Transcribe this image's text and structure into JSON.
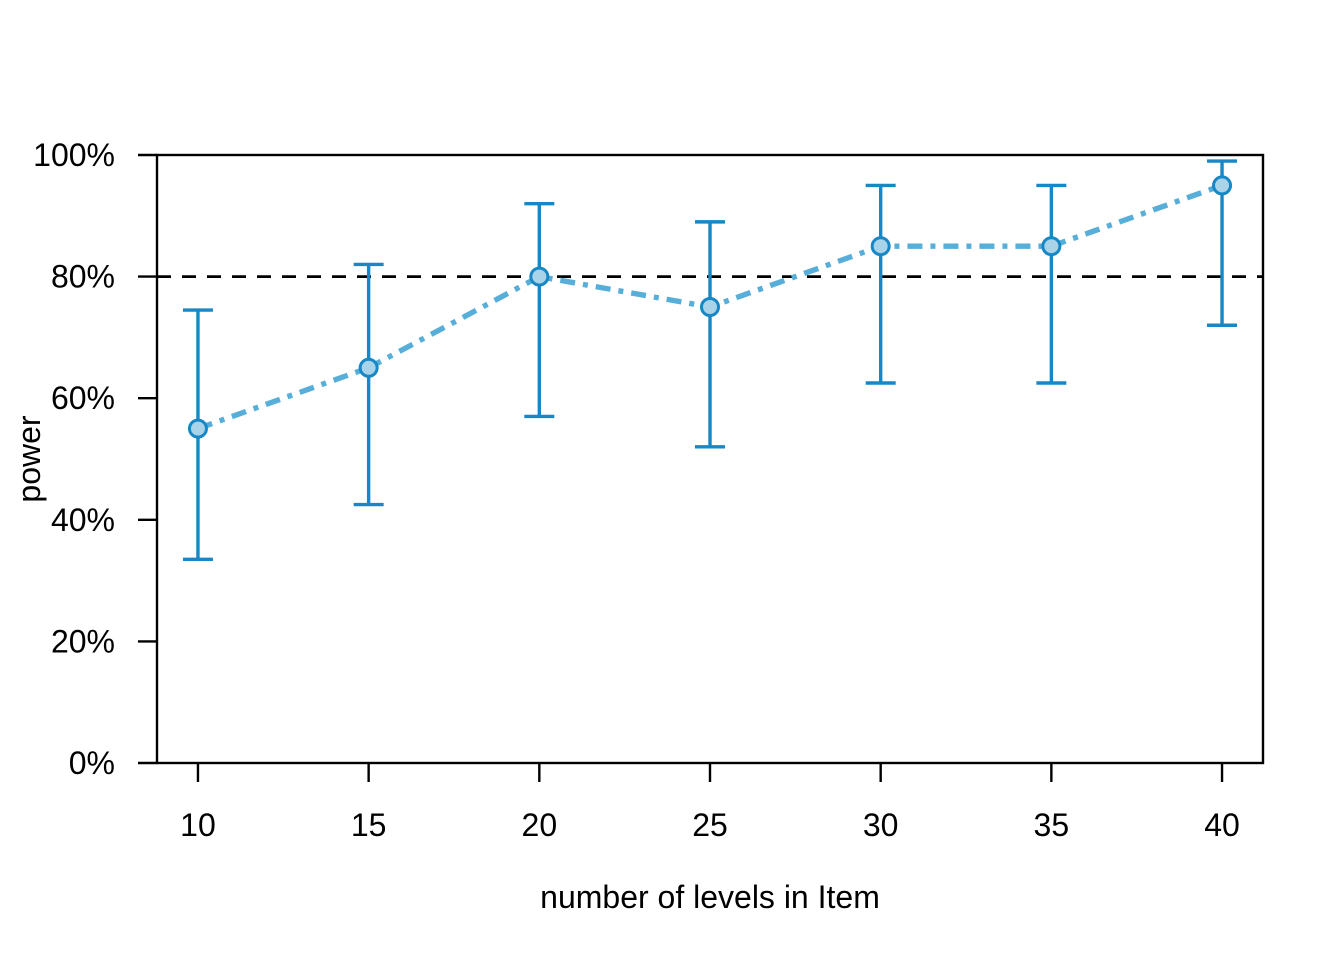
{
  "chart_data": {
    "type": "line",
    "title": "",
    "xlabel": "number of levels in Item",
    "ylabel": "power",
    "x": [
      10,
      15,
      20,
      25,
      30,
      35,
      40
    ],
    "series": [
      {
        "name": "power",
        "values": [
          55,
          65,
          80,
          75,
          85,
          85,
          95
        ]
      }
    ],
    "error_bars": {
      "lower": [
        33.5,
        42.5,
        57,
        52,
        62.5,
        62.5,
        72
      ],
      "upper": [
        74.5,
        82,
        92,
        89,
        95,
        95,
        99
      ]
    },
    "reference_line": {
      "y": 80,
      "style": "dashed",
      "color": "#000000"
    },
    "x_tick_values": [
      10,
      15,
      20,
      25,
      30,
      35,
      40
    ],
    "x_tick_labels": [
      "10",
      "15",
      "20",
      "25",
      "30",
      "35",
      "40"
    ],
    "y_tick_values": [
      0,
      20,
      40,
      60,
      80,
      100
    ],
    "y_tick_labels": [
      "0%",
      "20%",
      "40%",
      "60%",
      "80%",
      "100%"
    ],
    "xlim": [
      8.8,
      41.2
    ],
    "ylim": [
      0,
      100
    ],
    "grid": false,
    "legend": "none",
    "marker": "circle-open-filled",
    "line_style": "dash-dot",
    "colors": {
      "line": "#56AED9",
      "error_bar": "#1787C6",
      "marker_fill": "#A9D3E9",
      "marker_stroke": "#1787C6",
      "reference_line": "#000000",
      "axis": "#000000",
      "background": "#FFFFFF"
    }
  }
}
